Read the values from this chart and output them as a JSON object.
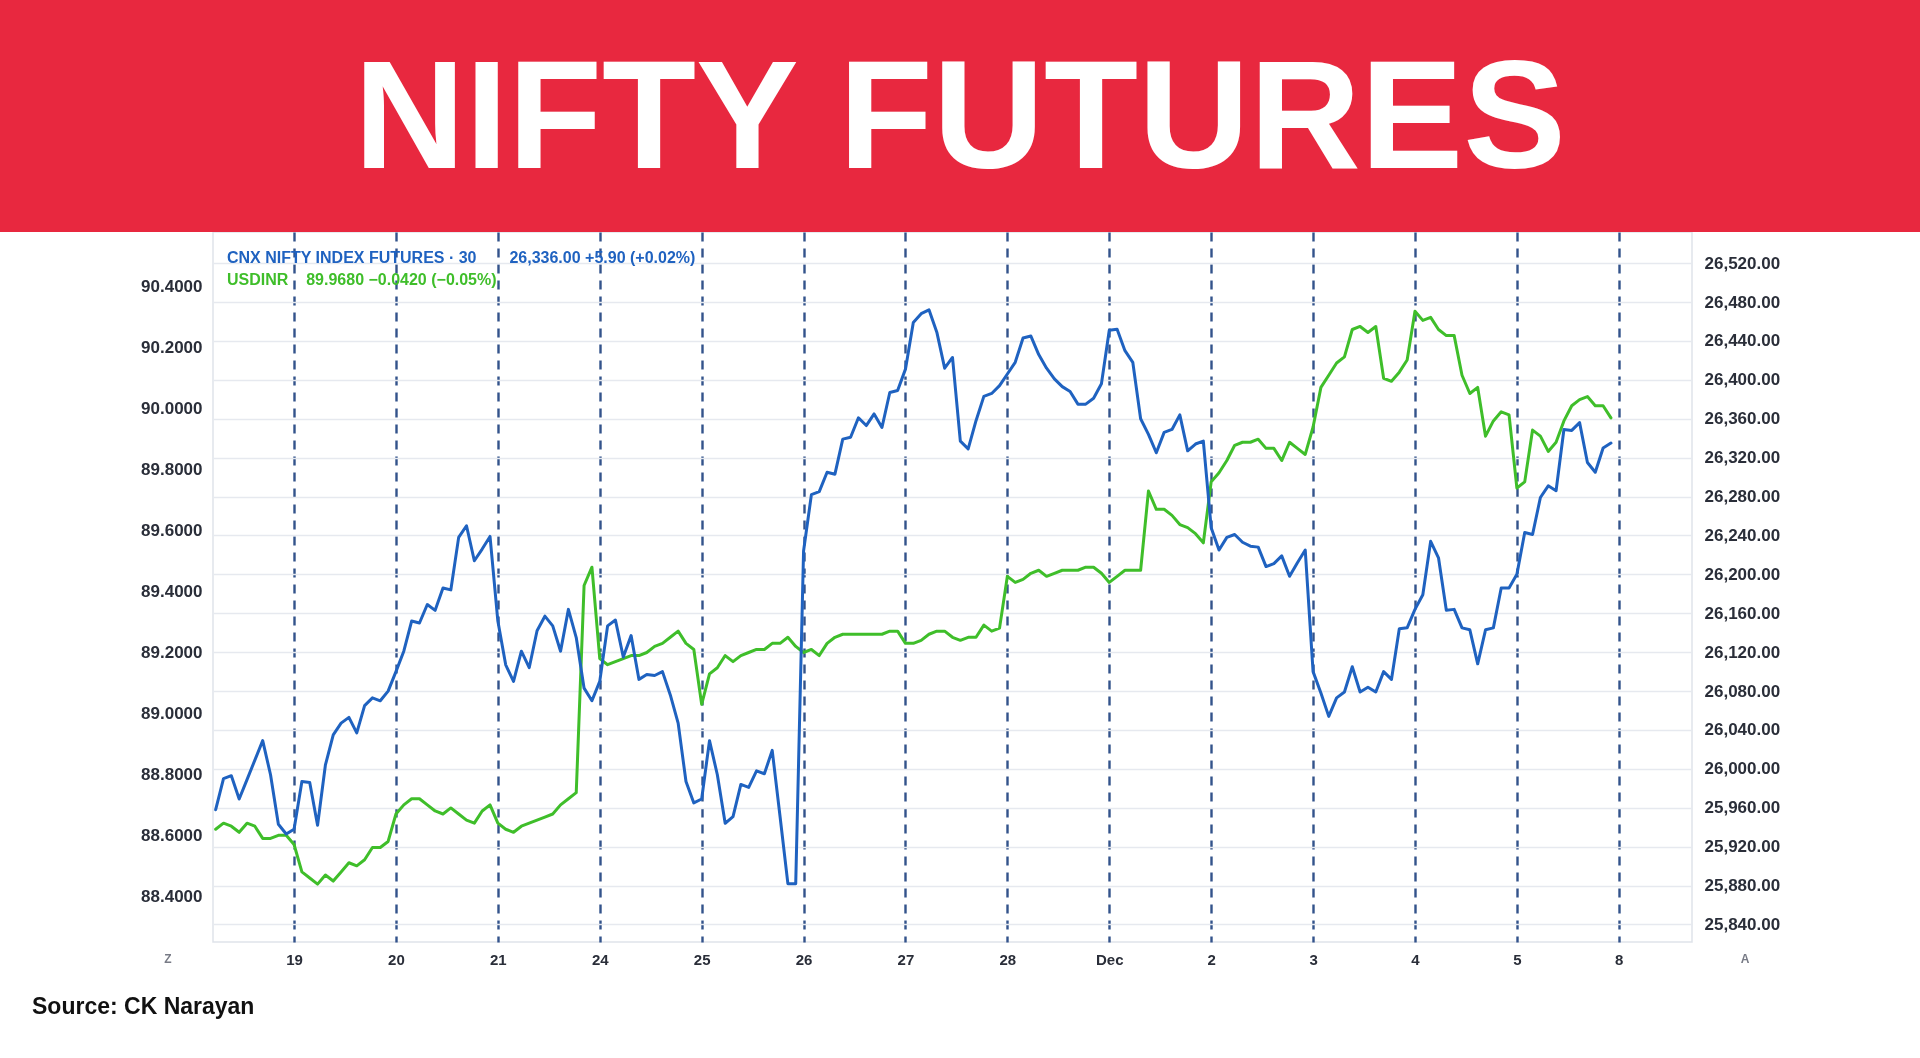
{
  "chart_data": {
    "type": "line",
    "title": "NIFTY FUTURES",
    "categories": [
      null,
      null,
      null,
      null,
      null,
      null,
      null,
      null,
      null,
      null,
      "19",
      null,
      null,
      null,
      null,
      null,
      null,
      null,
      null,
      null,
      null,
      null,
      null,
      "20",
      null,
      null,
      null,
      null,
      null,
      null,
      null,
      null,
      null,
      null,
      null,
      null,
      "21",
      null,
      null,
      null,
      null,
      null,
      null,
      null,
      null,
      null,
      null,
      null,
      null,
      "24",
      null,
      null,
      null,
      null,
      null,
      null,
      null,
      null,
      null,
      null,
      null,
      null,
      "25",
      null,
      null,
      null,
      null,
      null,
      null,
      null,
      null,
      null,
      null,
      null,
      null,
      "26",
      null,
      null,
      null,
      null,
      null,
      null,
      null,
      null,
      null,
      null,
      null,
      null,
      "27",
      null,
      null,
      null,
      null,
      null,
      null,
      null,
      null,
      null,
      null,
      null,
      null,
      "28",
      null,
      null,
      null,
      null,
      null,
      null,
      null,
      null,
      null,
      null,
      null,
      null,
      "Dec",
      null,
      null,
      null,
      null,
      null,
      null,
      null,
      null,
      null,
      null,
      null,
      null,
      "2",
      null,
      null,
      null,
      null,
      null,
      null,
      null,
      null,
      null,
      null,
      null,
      null,
      "3",
      null,
      null,
      null,
      null,
      null,
      null,
      null,
      null,
      null,
      null,
      null,
      null,
      "4",
      null,
      null,
      null,
      null,
      null,
      null,
      null,
      null,
      null,
      null,
      null,
      null,
      "5",
      null,
      null,
      null,
      null,
      null,
      null,
      null,
      null,
      null,
      null,
      null,
      null,
      "8",
      null,
      null,
      null,
      null,
      null,
      null,
      null,
      null,
      null
    ],
    "ylim": [
      88.25,
      90.58
    ],
    "yticks": [
      {
        "value": 88.4,
        "label": "88.4000"
      },
      {
        "value": 88.6,
        "label": "88.6000"
      },
      {
        "value": 88.8,
        "label": "88.8000"
      },
      {
        "value": 89.0,
        "label": "89.0000"
      },
      {
        "value": 89.2,
        "label": "89.2000"
      },
      {
        "value": 89.4,
        "label": "89.4000"
      },
      {
        "value": 89.6,
        "label": "89.6000"
      },
      {
        "value": 89.8,
        "label": "89.8000"
      },
      {
        "value": 90.0,
        "label": "90.0000"
      },
      {
        "value": 90.2,
        "label": "90.2000"
      },
      {
        "value": 90.4,
        "label": "90.4000"
      }
    ],
    "y2lim": [
      25822,
      26552
    ],
    "y2ticks": [
      {
        "value": 25840,
        "label": "25,840.00"
      },
      {
        "value": 25880,
        "label": "25,880.00"
      },
      {
        "value": 25920,
        "label": "25,920.00"
      },
      {
        "value": 25960,
        "label": "25,960.00"
      },
      {
        "value": 26000,
        "label": "26,000.00"
      },
      {
        "value": 26040,
        "label": "26,040.00"
      },
      {
        "value": 26080,
        "label": "26,080.00"
      },
      {
        "value": 26120,
        "label": "26,120.00"
      },
      {
        "value": 26160,
        "label": "26,160.00"
      },
      {
        "value": 26200,
        "label": "26,200.00"
      },
      {
        "value": 26240,
        "label": "26,240.00"
      },
      {
        "value": 26280,
        "label": "26,280.00"
      },
      {
        "value": 26320,
        "label": "26,320.00"
      },
      {
        "value": 26360,
        "label": "26,360.00"
      },
      {
        "value": 26400,
        "label": "26,400.00"
      },
      {
        "value": 26440,
        "label": "26,440.00"
      },
      {
        "value": 26480,
        "label": "26,480.00"
      },
      {
        "value": 26520,
        "label": "26,520.00"
      }
    ],
    "grid": true,
    "legend": "top left",
    "series": [
      {
        "name": "CNX NIFTY INDEX FUTURES · 30",
        "color": "#1f62c0",
        "axis": "y2",
        "values": [
          25958,
          25990,
          25993,
          25969,
          25989,
          26009,
          26029,
          25994,
          25943,
          25933,
          25938,
          25987,
          25986,
          25942,
          26004,
          26035,
          26047,
          26053,
          26037,
          26065,
          26073,
          26070,
          26080,
          26100,
          26121,
          26152,
          26150,
          26169,
          26163,
          26186,
          26184,
          26238,
          26250,
          26214,
          26226,
          26239,
          26152,
          26107,
          26090,
          26121,
          26104,
          26142,
          26157,
          26147,
          26121,
          26164,
          26135,
          26083,
          26070,
          26090,
          26147,
          26153,
          26115,
          26137,
          26092,
          26097,
          26096,
          26100,
          26076,
          26047,
          25987,
          25965,
          25969,
          26029,
          25994,
          25944,
          25951,
          25984,
          25981,
          25998,
          25995,
          26019,
          25951,
          25882,
          25882,
          26224,
          26282,
          26285,
          26305,
          26303,
          26339,
          26341,
          26361,
          26353,
          26365,
          26351,
          26387,
          26389,
          26411,
          26459,
          26468,
          26472,
          26449,
          26412,
          26423,
          26337,
          26329,
          26358,
          26383,
          26386,
          26394,
          26406,
          26418,
          26443,
          26445,
          26426,
          26412,
          26401,
          26393,
          26388,
          26375,
          26375,
          26381,
          26396,
          26451,
          26452,
          26430,
          26418,
          26360,
          26344,
          26325,
          26346,
          26349,
          26364,
          26327,
          26334,
          26337,
          26248,
          26225,
          26238,
          26241,
          26233,
          26229,
          26228,
          26208,
          26211,
          26219,
          26198,
          26212,
          26225,
          26100,
          26078,
          26054,
          26073,
          26079,
          26105,
          26079,
          26084,
          26079,
          26100,
          26092,
          26144,
          26145,
          26164,
          26179,
          26234,
          26217,
          26163,
          26164,
          26145,
          26143,
          26108,
          26143,
          26145,
          26186,
          26186,
          26200,
          26243,
          26241,
          26279,
          26291,
          26286,
          26349,
          26348,
          26356,
          26315,
          26305,
          26330,
          26335,
          null,
          null,
          null,
          null,
          null,
          null,
          null,
          null,
          null,
          null
        ]
      },
      {
        "name": "USDINR",
        "color": "#3fbe2a",
        "values": [
          88.62,
          88.64,
          88.63,
          88.61,
          88.64,
          88.63,
          88.59,
          88.59,
          88.6,
          88.6,
          88.57,
          88.48,
          88.46,
          88.44,
          88.47,
          88.45,
          88.48,
          88.51,
          88.5,
          88.52,
          88.56,
          88.56,
          88.58,
          88.67,
          88.7,
          88.72,
          88.72,
          88.7,
          88.68,
          88.67,
          88.69,
          88.67,
          88.65,
          88.64,
          88.68,
          88.7,
          88.64,
          88.62,
          88.61,
          88.63,
          88.64,
          88.65,
          88.66,
          88.67,
          88.7,
          88.72,
          88.74,
          89.42,
          89.48,
          89.18,
          89.16,
          89.17,
          89.18,
          89.19,
          89.19,
          89.2,
          89.22,
          89.23,
          89.25,
          89.27,
          89.23,
          89.21,
          89.03,
          89.13,
          89.15,
          89.19,
          89.17,
          89.19,
          89.2,
          89.21,
          89.21,
          89.23,
          89.23,
          89.25,
          89.22,
          89.2,
          89.21,
          89.19,
          89.23,
          89.25,
          89.26,
          89.26,
          89.26,
          89.26,
          89.26,
          89.26,
          89.27,
          89.27,
          89.23,
          89.23,
          89.24,
          89.26,
          89.27,
          89.27,
          89.25,
          89.24,
          89.25,
          89.25,
          89.29,
          89.27,
          89.28,
          89.45,
          89.43,
          89.44,
          89.46,
          89.47,
          89.45,
          89.46,
          89.47,
          89.47,
          89.47,
          89.48,
          89.48,
          89.46,
          89.43,
          89.45,
          89.47,
          89.47,
          89.47,
          89.73,
          89.67,
          89.67,
          89.65,
          89.62,
          89.61,
          89.59,
          89.56,
          89.76,
          89.79,
          89.83,
          89.88,
          89.89,
          89.89,
          89.9,
          89.87,
          89.87,
          89.83,
          89.89,
          89.87,
          89.85,
          89.94,
          90.07,
          90.11,
          90.15,
          90.17,
          90.26,
          90.27,
          90.25,
          90.27,
          90.1,
          90.09,
          90.12,
          90.16,
          90.32,
          90.29,
          90.3,
          90.26,
          90.24,
          90.24,
          90.11,
          90.05,
          90.07,
          89.91,
          89.96,
          89.99,
          89.98,
          89.74,
          89.76,
          89.93,
          89.91,
          89.86,
          89.89,
          89.96,
          90.01,
          90.03,
          90.04,
          90.01,
          90.01,
          89.97,
          null,
          null,
          null,
          null,
          null,
          null,
          null,
          null,
          null,
          null
        ]
      }
    ],
    "annotations": [
      "26,336.00 +5.90 (+0.02%)",
      "89.9680 −0.0420 (−0.05%)",
      "Source: CK Narayan",
      "Z",
      "A"
    ]
  }
}
